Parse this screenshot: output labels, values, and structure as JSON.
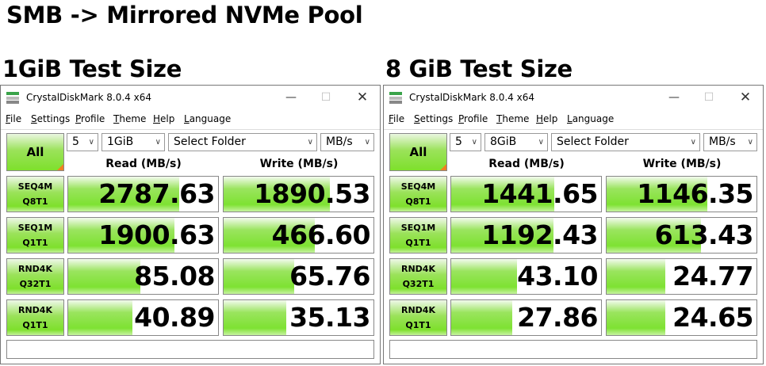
{
  "heading": "SMB -> Mirrored NVMe Pool",
  "colors": {
    "bar_green": "#7ee232",
    "corner_orange": "#f08020"
  },
  "window": {
    "title": "CrystalDiskMark 8.0.4 x64",
    "menu": [
      "File",
      "Settings",
      "Profile",
      "Theme",
      "Help",
      "Language"
    ],
    "all_label": "All",
    "read_header": "Read (MB/s)",
    "write_header": "Write (MB/s)",
    "icons": [
      "app-icon",
      "minimize-icon",
      "maximize-icon",
      "close-icon",
      "chevron-down-icon"
    ]
  },
  "panels": [
    {
      "caption": "1GiB Test Size",
      "count": "5",
      "size": "1GiB",
      "folder": "Select Folder",
      "unit": "MB/s",
      "rows": [
        {
          "l1": "SEQ4M",
          "l2": "Q8T1",
          "read": "2787.63",
          "read_fill": 0.74,
          "write": "1890.53",
          "write_fill": 0.71
        },
        {
          "l1": "SEQ1M",
          "l2": "Q1T1",
          "read": "1900.63",
          "read_fill": 0.71,
          "write": "466.60",
          "write_fill": 0.61
        },
        {
          "l1": "RND4K",
          "l2": "Q32T1",
          "read": "85.08",
          "read_fill": 0.48,
          "write": "65.76",
          "write_fill": 0.47
        },
        {
          "l1": "RND4K",
          "l2": "Q1T1",
          "read": "40.89",
          "read_fill": 0.43,
          "write": "35.13",
          "write_fill": 0.42
        }
      ]
    },
    {
      "caption": "8 GiB Test Size",
      "count": "5",
      "size": "8GiB",
      "folder": "Select Folder",
      "unit": "MB/s",
      "rows": [
        {
          "l1": "SEQ4M",
          "l2": "Q8T1",
          "read": "1441.65",
          "read_fill": 0.69,
          "write": "1146.35",
          "write_fill": 0.67
        },
        {
          "l1": "SEQ1M",
          "l2": "Q1T1",
          "read": "1192.43",
          "read_fill": 0.68,
          "write": "613.43",
          "write_fill": 0.63
        },
        {
          "l1": "RND4K",
          "l2": "Q32T1",
          "read": "43.10",
          "read_fill": 0.44,
          "write": "24.77",
          "write_fill": 0.39
        },
        {
          "l1": "RND4K",
          "l2": "Q1T1",
          "read": "27.86",
          "read_fill": 0.41,
          "write": "24.65",
          "write_fill": 0.39
        }
      ]
    }
  ]
}
